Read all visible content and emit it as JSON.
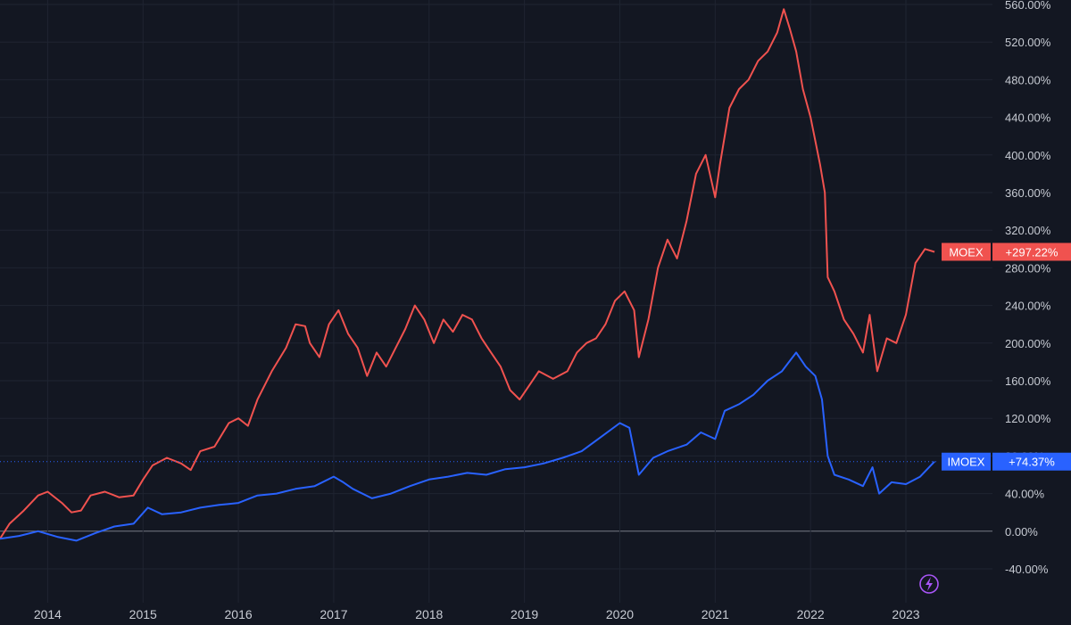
{
  "chart_data": {
    "type": "line",
    "grid": true,
    "legend": "price-scale labels at right",
    "x_axis": {
      "labels": [
        "2014",
        "2015",
        "2016",
        "2017",
        "2018",
        "2019",
        "2020",
        "2021",
        "2022",
        "2023"
      ]
    },
    "y_axis": {
      "unit": "%",
      "range": [
        -40,
        560
      ],
      "ticks": [
        "560.00%",
        "520.00%",
        "480.00%",
        "440.00%",
        "400.00%",
        "360.00%",
        "320.00%",
        "280.00%",
        "240.00%",
        "200.00%",
        "160.00%",
        "120.00%",
        "80.00%",
        "40.00%",
        "0.00%",
        "-40.00%"
      ],
      "zero_label": "0.00%"
    },
    "series": [
      {
        "name": "MOEX",
        "color": "#f0524f",
        "last_label": "+297.22%",
        "points": [
          [
            2013.5,
            -8
          ],
          [
            2013.6,
            8
          ],
          [
            2013.75,
            22
          ],
          [
            2013.9,
            38
          ],
          [
            2014.0,
            42
          ],
          [
            2014.15,
            30
          ],
          [
            2014.25,
            20
          ],
          [
            2014.35,
            22
          ],
          [
            2014.45,
            38
          ],
          [
            2014.6,
            42
          ],
          [
            2014.75,
            36
          ],
          [
            2014.9,
            38
          ],
          [
            2015.0,
            55
          ],
          [
            2015.1,
            70
          ],
          [
            2015.25,
            78
          ],
          [
            2015.4,
            72
          ],
          [
            2015.5,
            65
          ],
          [
            2015.6,
            85
          ],
          [
            2015.75,
            90
          ],
          [
            2015.9,
            115
          ],
          [
            2016.0,
            120
          ],
          [
            2016.1,
            112
          ],
          [
            2016.2,
            140
          ],
          [
            2016.35,
            170
          ],
          [
            2016.5,
            195
          ],
          [
            2016.6,
            220
          ],
          [
            2016.7,
            218
          ],
          [
            2016.75,
            200
          ],
          [
            2016.85,
            185
          ],
          [
            2016.95,
            220
          ],
          [
            2017.05,
            235
          ],
          [
            2017.15,
            210
          ],
          [
            2017.25,
            195
          ],
          [
            2017.35,
            165
          ],
          [
            2017.45,
            190
          ],
          [
            2017.55,
            175
          ],
          [
            2017.65,
            195
          ],
          [
            2017.75,
            215
          ],
          [
            2017.85,
            240
          ],
          [
            2017.95,
            225
          ],
          [
            2018.05,
            200
          ],
          [
            2018.15,
            225
          ],
          [
            2018.25,
            212
          ],
          [
            2018.35,
            230
          ],
          [
            2018.45,
            225
          ],
          [
            2018.55,
            205
          ],
          [
            2018.65,
            190
          ],
          [
            2018.75,
            175
          ],
          [
            2018.85,
            150
          ],
          [
            2018.95,
            140
          ],
          [
            2019.05,
            155
          ],
          [
            2019.15,
            170
          ],
          [
            2019.3,
            162
          ],
          [
            2019.45,
            170
          ],
          [
            2019.55,
            190
          ],
          [
            2019.65,
            200
          ],
          [
            2019.75,
            205
          ],
          [
            2019.85,
            220
          ],
          [
            2019.95,
            245
          ],
          [
            2020.05,
            255
          ],
          [
            2020.15,
            235
          ],
          [
            2020.2,
            185
          ],
          [
            2020.3,
            225
          ],
          [
            2020.4,
            280
          ],
          [
            2020.5,
            310
          ],
          [
            2020.6,
            290
          ],
          [
            2020.7,
            330
          ],
          [
            2020.8,
            380
          ],
          [
            2020.9,
            400
          ],
          [
            2021.0,
            355
          ],
          [
            2021.05,
            390
          ],
          [
            2021.15,
            450
          ],
          [
            2021.25,
            470
          ],
          [
            2021.35,
            480
          ],
          [
            2021.45,
            500
          ],
          [
            2021.55,
            510
          ],
          [
            2021.65,
            530
          ],
          [
            2021.72,
            555
          ],
          [
            2021.78,
            535
          ],
          [
            2021.85,
            510
          ],
          [
            2021.92,
            470
          ],
          [
            2022.0,
            440
          ],
          [
            2022.1,
            390
          ],
          [
            2022.15,
            360
          ],
          [
            2022.18,
            270
          ],
          [
            2022.25,
            255
          ],
          [
            2022.35,
            225
          ],
          [
            2022.45,
            210
          ],
          [
            2022.55,
            190
          ],
          [
            2022.62,
            230
          ],
          [
            2022.7,
            170
          ],
          [
            2022.8,
            205
          ],
          [
            2022.9,
            200
          ],
          [
            2023.0,
            230
          ],
          [
            2023.1,
            285
          ],
          [
            2023.2,
            300
          ],
          [
            2023.3,
            297
          ]
        ]
      },
      {
        "name": "IMOEX",
        "color": "#2962ff",
        "last_label": "+74.37%",
        "points": [
          [
            2013.5,
            -8
          ],
          [
            2013.7,
            -5
          ],
          [
            2013.9,
            0
          ],
          [
            2014.1,
            -6
          ],
          [
            2014.3,
            -10
          ],
          [
            2014.5,
            -2
          ],
          [
            2014.7,
            5
          ],
          [
            2014.9,
            8
          ],
          [
            2015.05,
            25
          ],
          [
            2015.2,
            18
          ],
          [
            2015.4,
            20
          ],
          [
            2015.6,
            25
          ],
          [
            2015.8,
            28
          ],
          [
            2016.0,
            30
          ],
          [
            2016.2,
            38
          ],
          [
            2016.4,
            40
          ],
          [
            2016.6,
            45
          ],
          [
            2016.8,
            48
          ],
          [
            2017.0,
            58
          ],
          [
            2017.1,
            52
          ],
          [
            2017.2,
            45
          ],
          [
            2017.4,
            35
          ],
          [
            2017.6,
            40
          ],
          [
            2017.8,
            48
          ],
          [
            2018.0,
            55
          ],
          [
            2018.2,
            58
          ],
          [
            2018.4,
            62
          ],
          [
            2018.6,
            60
          ],
          [
            2018.8,
            66
          ],
          [
            2019.0,
            68
          ],
          [
            2019.2,
            72
          ],
          [
            2019.4,
            78
          ],
          [
            2019.6,
            85
          ],
          [
            2019.8,
            100
          ],
          [
            2020.0,
            115
          ],
          [
            2020.1,
            110
          ],
          [
            2020.2,
            60
          ],
          [
            2020.35,
            78
          ],
          [
            2020.5,
            85
          ],
          [
            2020.7,
            92
          ],
          [
            2020.85,
            105
          ],
          [
            2021.0,
            98
          ],
          [
            2021.1,
            128
          ],
          [
            2021.25,
            135
          ],
          [
            2021.4,
            145
          ],
          [
            2021.55,
            160
          ],
          [
            2021.7,
            170
          ],
          [
            2021.85,
            190
          ],
          [
            2021.95,
            175
          ],
          [
            2022.05,
            165
          ],
          [
            2022.12,
            140
          ],
          [
            2022.18,
            80
          ],
          [
            2022.25,
            60
          ],
          [
            2022.4,
            55
          ],
          [
            2022.55,
            48
          ],
          [
            2022.65,
            68
          ],
          [
            2022.72,
            40
          ],
          [
            2022.85,
            52
          ],
          [
            2023.0,
            50
          ],
          [
            2023.15,
            58
          ],
          [
            2023.3,
            74
          ]
        ]
      }
    ]
  },
  "toolbar": {
    "lightning_icon": "lightning-icon"
  }
}
